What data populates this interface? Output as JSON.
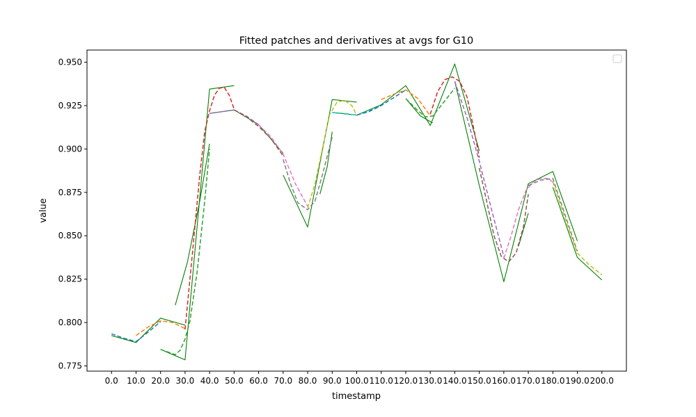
{
  "chart_data": {
    "type": "line",
    "title": "Fitted patches and derivatives at avgs for G10",
    "xlabel": "timestamp",
    "ylabel": "value",
    "xlim": [
      -10,
      210
    ],
    "ylim": [
      0.772,
      0.957
    ],
    "x_tick_labels": [
      "0.0",
      "10.0",
      "20.0",
      "30.0",
      "40.0",
      "50.0",
      "60.0",
      "70.0",
      "80.0",
      "90.0",
      "100.0",
      "110.0",
      "120.0",
      "130.0",
      "140.0",
      "150.0",
      "160.0",
      "170.0",
      "180.0",
      "190.0",
      "200.0"
    ],
    "y_tick_labels": [
      "0.775",
      "0.800",
      "0.825",
      "0.850",
      "0.875",
      "0.900",
      "0.925",
      "0.950"
    ],
    "legend": {
      "placement": "top-right",
      "entries": []
    },
    "colors": {
      "green": "#008000",
      "blue": "#1f77b4",
      "orange": "#ff7f0e",
      "dgreen": "#2ca02c",
      "red": "#d62728",
      "purple": "#9467bd",
      "brown": "#8c564b",
      "pink": "#e377c2",
      "gray": "#7f7f7f",
      "olive": "#bcbd22",
      "cyan": "#17becf"
    },
    "series": [
      {
        "color": "green",
        "dash": false,
        "width": 1.1,
        "segments": [
          [
            [
              0,
              0.7925
            ],
            [
              10,
              0.7885
            ],
            [
              20,
              0.8025
            ],
            [
              30,
              0.7985
            ]
          ],
          [
            [
              20,
              0.7845
            ],
            [
              30,
              0.7785
            ],
            [
              40,
              0.9345
            ],
            [
              50,
              0.9365
            ]
          ],
          [
            [
              40,
              0.9205
            ],
            [
              50,
              0.9225
            ],
            [
              60,
              0.914
            ],
            [
              70,
              0.8975
            ]
          ],
          [
            [
              70,
              0.885
            ],
            [
              80,
              0.855
            ],
            [
              90,
              0.9285
            ],
            [
              100,
              0.927
            ]
          ],
          [
            [
              90,
              0.921
            ],
            [
              100,
              0.9195
            ],
            [
              110,
              0.9255
            ],
            [
              120,
              0.9365
            ],
            [
              130,
              0.9135
            ],
            [
              140,
              0.949
            ],
            [
              150,
              0.899
            ]
          ],
          [
            [
              140,
              0.939
            ],
            [
              150,
              0.879
            ],
            [
              160,
              0.8235
            ],
            [
              170,
              0.88
            ],
            [
              180,
              0.887
            ],
            [
              190,
              0.847
            ]
          ],
          [
            [
              180,
              0.878
            ],
            [
              190,
              0.8375
            ],
            [
              200,
              0.8245
            ]
          ]
        ]
      },
      {
        "color": "green",
        "dash": false,
        "width": 1.1,
        "segments": [
          [
            [
              26,
              0.81
            ],
            [
              31,
              0.835
            ],
            [
              36,
              0.87
            ],
            [
              40,
              0.903
            ]
          ],
          [
            [
              85,
              0.874
            ],
            [
              88,
              0.89
            ],
            [
              90,
              0.91
            ]
          ],
          [
            [
              120,
              0.929
            ],
            [
              126,
              0.919
            ],
            [
              131,
              0.915
            ]
          ],
          [
            [
              166,
              0.844
            ],
            [
              170,
              0.863
            ]
          ]
        ]
      },
      {
        "color": "blue",
        "dash": true,
        "width": 1.5,
        "points": [
          [
            0,
            0.7935
          ],
          [
            5,
            0.791
          ],
          [
            10,
            0.789
          ],
          [
            15,
            0.7945
          ],
          [
            20,
            0.8005
          ]
        ]
      },
      {
        "color": "orange",
        "dash": true,
        "width": 1.5,
        "points": [
          [
            10,
            0.7925
          ],
          [
            15,
            0.7975
          ],
          [
            20,
            0.801
          ],
          [
            25,
            0.8
          ],
          [
            30,
            0.7965
          ]
        ]
      },
      {
        "color": "dgreen",
        "dash": true,
        "width": 1.5,
        "points": [
          [
            20,
            0.7845
          ],
          [
            23,
            0.783
          ],
          [
            26,
            0.7815
          ],
          [
            28,
            0.784
          ],
          [
            30,
            0.7905
          ],
          [
            32,
            0.801
          ],
          [
            35,
            0.83
          ],
          [
            38,
            0.87
          ],
          [
            40,
            0.9
          ]
        ]
      },
      {
        "color": "red",
        "dash": true,
        "width": 1.5,
        "points": [
          [
            30,
            0.796
          ],
          [
            33,
            0.84
          ],
          [
            36,
            0.885
          ],
          [
            38,
            0.91
          ],
          [
            40,
            0.922
          ],
          [
            42,
            0.931
          ],
          [
            44,
            0.935
          ],
          [
            46,
            0.9355
          ],
          [
            48,
            0.931
          ],
          [
            50,
            0.923
          ]
        ]
      },
      {
        "color": "purple",
        "dash": true,
        "width": 1.5,
        "points": [
          [
            40,
            0.9205
          ],
          [
            45,
            0.9215
          ],
          [
            50,
            0.9225
          ],
          [
            55,
            0.919
          ],
          [
            60,
            0.914
          ]
        ]
      },
      {
        "color": "brown",
        "dash": true,
        "width": 1.5,
        "points": [
          [
            50,
            0.9225
          ],
          [
            55,
            0.9185
          ],
          [
            60,
            0.913
          ],
          [
            65,
            0.906
          ],
          [
            70,
            0.896
          ]
        ]
      },
      {
        "color": "pink",
        "dash": true,
        "width": 1.5,
        "points": [
          [
            60,
            0.914
          ],
          [
            65,
            0.907
          ],
          [
            70,
            0.897
          ],
          [
            75,
            0.88
          ],
          [
            80,
            0.867
          ]
        ]
      },
      {
        "color": "gray",
        "dash": true,
        "width": 1.5,
        "points": [
          [
            70,
            0.894
          ],
          [
            73,
            0.88
          ],
          [
            76,
            0.869
          ],
          [
            80,
            0.865
          ],
          [
            83,
            0.87
          ],
          [
            86,
            0.885
          ],
          [
            90,
            0.907
          ]
        ]
      },
      {
        "color": "olive",
        "dash": true,
        "width": 1.5,
        "points": [
          [
            80,
            0.866
          ],
          [
            83,
            0.88
          ],
          [
            86,
            0.9
          ],
          [
            89,
            0.92
          ],
          [
            92,
            0.927
          ],
          [
            95,
            0.928
          ],
          [
            98,
            0.925
          ],
          [
            100,
            0.9195
          ]
        ]
      },
      {
        "color": "cyan",
        "dash": true,
        "width": 1.5,
        "points": [
          [
            90,
            0.921
          ],
          [
            95,
            0.9205
          ],
          [
            100,
            0.9195
          ],
          [
            105,
            0.922
          ],
          [
            110,
            0.925
          ]
        ]
      },
      {
        "color": "blue",
        "dash": true,
        "width": 1.5,
        "points": [
          [
            100,
            0.9195
          ],
          [
            105,
            0.9215
          ],
          [
            110,
            0.925
          ],
          [
            115,
            0.9295
          ],
          [
            120,
            0.934
          ]
        ]
      },
      {
        "color": "orange",
        "dash": true,
        "width": 1.5,
        "points": [
          [
            110,
            0.9285
          ],
          [
            115,
            0.9315
          ],
          [
            120,
            0.934
          ],
          [
            125,
            0.929
          ],
          [
            130,
            0.919
          ]
        ]
      },
      {
        "color": "dgreen",
        "dash": true,
        "width": 1.5,
        "points": [
          [
            120,
            0.929
          ],
          [
            125,
            0.922
          ],
          [
            128,
            0.9185
          ],
          [
            131,
            0.919
          ],
          [
            135,
            0.926
          ],
          [
            140,
            0.935
          ]
        ]
      },
      {
        "color": "red",
        "dash": true,
        "width": 1.5,
        "points": [
          [
            130,
            0.92
          ],
          [
            133,
            0.933
          ],
          [
            136,
            0.94
          ],
          [
            139,
            0.9415
          ],
          [
            142,
            0.939
          ],
          [
            145,
            0.93
          ],
          [
            148,
            0.91
          ],
          [
            150,
            0.895
          ]
        ]
      },
      {
        "color": "purple",
        "dash": true,
        "width": 1.5,
        "points": [
          [
            140,
            0.939
          ],
          [
            145,
            0.918
          ],
          [
            150,
            0.893
          ],
          [
            155,
            0.865
          ],
          [
            160,
            0.838
          ]
        ]
      },
      {
        "color": "brown",
        "dash": true,
        "width": 1.5,
        "points": [
          [
            150,
            0.889
          ],
          [
            153,
            0.87
          ],
          [
            156,
            0.85
          ],
          [
            159,
            0.838
          ],
          [
            162,
            0.835
          ],
          [
            165,
            0.84
          ],
          [
            168,
            0.855
          ],
          [
            170,
            0.874
          ]
        ]
      },
      {
        "color": "pink",
        "dash": true,
        "width": 1.5,
        "points": [
          [
            160,
            0.837
          ],
          [
            163,
            0.85
          ],
          [
            166,
            0.865
          ],
          [
            169,
            0.876
          ],
          [
            172,
            0.881
          ],
          [
            175,
            0.883
          ],
          [
            178,
            0.883
          ],
          [
            180,
            0.881
          ]
        ]
      },
      {
        "color": "gray",
        "dash": true,
        "width": 1.5,
        "points": [
          [
            170,
            0.879
          ],
          [
            175,
            0.882
          ],
          [
            180,
            0.883
          ],
          [
            185,
            0.862
          ],
          [
            190,
            0.841
          ]
        ]
      },
      {
        "color": "olive",
        "dash": true,
        "width": 1.5,
        "points": [
          [
            180,
            0.881
          ],
          [
            185,
            0.86
          ],
          [
            190,
            0.84
          ],
          [
            195,
            0.833
          ],
          [
            200,
            0.8275
          ]
        ]
      }
    ]
  }
}
